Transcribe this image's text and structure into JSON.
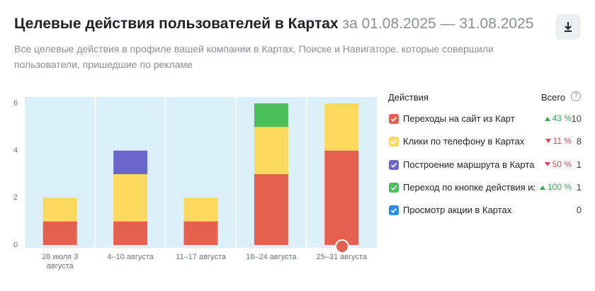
{
  "header": {
    "title": "Целевые действия пользователей в Картах",
    "period": "за 01.08.2025 — 31.08.2025",
    "subtitle": "Все целевые действия в профиле вашей компании в Картах, Поиске и Навигаторе, которые совершили пользователи, пришедшие по рекламе"
  },
  "chart_data": {
    "type": "stacked_bar",
    "categories": [
      "28 июля 3 августа",
      "4–10 августа",
      "11–17 августа",
      "18–24 августа",
      "25–31 августа"
    ],
    "ylim": [
      0,
      6
    ],
    "yticks": [
      0,
      2,
      4,
      6
    ],
    "legend_title": "Действия",
    "total_title": "Всего",
    "series": [
      {
        "name": "Переходы на сайт из Карт",
        "color": "#e5604f",
        "values": [
          1,
          1,
          1,
          3,
          4
        ],
        "total": 10,
        "change": {
          "value": 43,
          "label": "43 %"
        },
        "trend": "up"
      },
      {
        "name": "Клики по телефону в Картах",
        "color": "#fdd95e",
        "values": [
          1,
          2,
          1,
          2,
          2
        ],
        "total": 8,
        "change": {
          "value": 11,
          "label": "11 %"
        },
        "trend": "down"
      },
      {
        "name": "Построение маршрута в Картах",
        "color": "#6b66c9",
        "values": [
          0,
          1,
          0,
          0,
          0
        ],
        "total": 1,
        "change": {
          "value": 50,
          "label": "50 %"
        },
        "trend": "down"
      },
      {
        "name": "Переход по кнопке действия из",
        "color": "#4cbf5b",
        "values": [
          0,
          0,
          0,
          1,
          0
        ],
        "total": 1,
        "change": {
          "value": 100,
          "label": "100 %"
        },
        "trend": "up"
      },
      {
        "name": "Просмотр акции в Картах",
        "color": "#2a8cf0",
        "values": [
          0,
          0,
          0,
          0,
          0
        ],
        "total": 0
      }
    ]
  }
}
